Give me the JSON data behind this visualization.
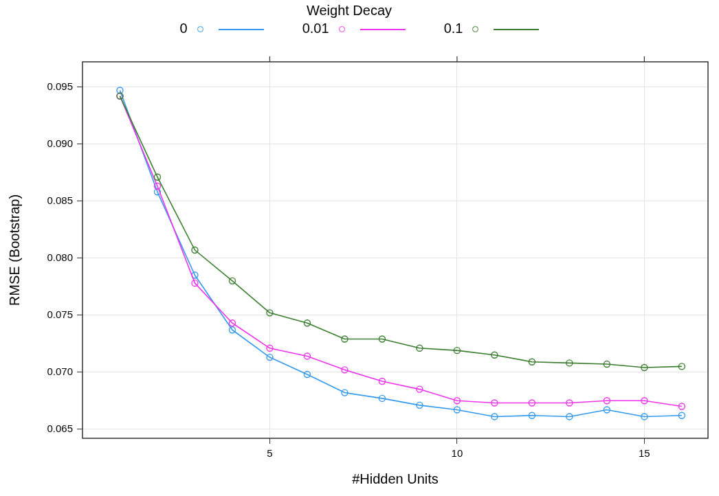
{
  "chart_data": {
    "type": "line",
    "xlabel": "#Hidden Units",
    "ylabel": "RMSE (Bootstrap)",
    "legend_title": "Weight Decay",
    "legend": "top",
    "marker": "circle",
    "grid": true,
    "x": [
      1,
      2,
      3,
      4,
      5,
      6,
      7,
      8,
      9,
      10,
      11,
      12,
      13,
      14,
      15,
      16
    ],
    "xlim": [
      0,
      16.7
    ],
    "xticks": [
      5,
      10,
      15
    ],
    "ylim": [
      0.0642,
      0.0972
    ],
    "yticks": [
      {
        "value": 0.065,
        "label": "0.065"
      },
      {
        "value": 0.07,
        "label": "0.070"
      },
      {
        "value": 0.075,
        "label": "0.075"
      },
      {
        "value": 0.08,
        "label": "0.080"
      },
      {
        "value": 0.085,
        "label": "0.085"
      },
      {
        "value": 0.09,
        "label": "0.090"
      },
      {
        "value": 0.095,
        "label": "0.095"
      }
    ],
    "series": [
      {
        "name": "0",
        "color": "#3399ee",
        "values": [
          0.0947,
          0.0858,
          0.0785,
          0.0737,
          0.0713,
          0.0698,
          0.0682,
          0.0677,
          0.0671,
          0.0667,
          0.0661,
          0.0662,
          0.0661,
          0.0667,
          0.0661,
          0.0662
        ]
      },
      {
        "name": "0.01",
        "color": "#ee33ee",
        "values": [
          0.0942,
          0.0863,
          0.0778,
          0.0743,
          0.0721,
          0.0714,
          0.0702,
          0.0692,
          0.0685,
          0.0675,
          0.0673,
          0.0673,
          0.0673,
          0.0675,
          0.0675,
          0.067
        ]
      },
      {
        "name": "0.1",
        "color": "#3a7d2e",
        "values": [
          0.0942,
          0.0871,
          0.0807,
          0.078,
          0.0752,
          0.0743,
          0.0729,
          0.0729,
          0.0721,
          0.0719,
          0.0715,
          0.0709,
          0.0708,
          0.0707,
          0.0704,
          0.0705
        ]
      }
    ]
  }
}
